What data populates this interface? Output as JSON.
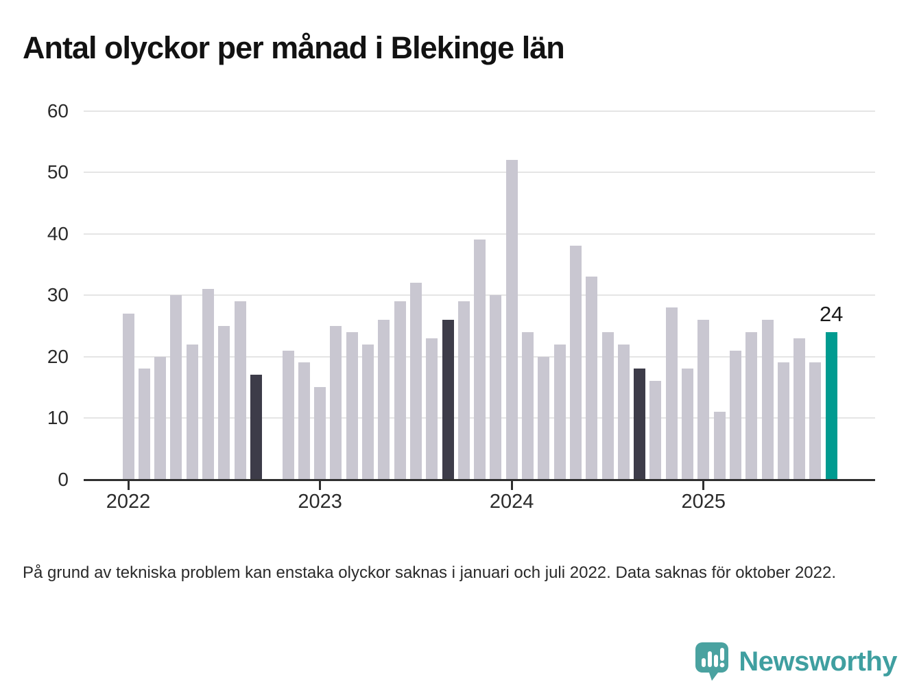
{
  "title": "Antal olyckor per månad i Blekinge län",
  "footnote": "På grund av tekniska problem kan enstaka olyckor saknas i januari och juli 2022. Data saknas för oktober 2022.",
  "logo": {
    "text": "Newsworthy"
  },
  "chart_data": {
    "type": "bar",
    "title": "Antal olyckor per månad i Blekinge län",
    "xlabel": "",
    "ylabel": "",
    "ylim": [
      0,
      60
    ],
    "y_ticks": [
      0,
      10,
      20,
      30,
      40,
      50,
      60
    ],
    "grid": true,
    "legend": false,
    "bars": [
      {
        "value": 27,
        "style": "default"
      },
      {
        "value": 18,
        "style": "default"
      },
      {
        "value": 20,
        "style": "default"
      },
      {
        "value": 30,
        "style": "default"
      },
      {
        "value": 22,
        "style": "default"
      },
      {
        "value": 31,
        "style": "default"
      },
      {
        "value": 25,
        "style": "default"
      },
      {
        "value": 29,
        "style": "default"
      },
      {
        "value": 17,
        "style": "dark"
      },
      {
        "value": null,
        "style": "none"
      },
      {
        "value": 21,
        "style": "default"
      },
      {
        "value": 19,
        "style": "default"
      },
      {
        "value": 15,
        "style": "default"
      },
      {
        "value": 25,
        "style": "default"
      },
      {
        "value": 24,
        "style": "default"
      },
      {
        "value": 22,
        "style": "default"
      },
      {
        "value": 26,
        "style": "default"
      },
      {
        "value": 29,
        "style": "default"
      },
      {
        "value": 32,
        "style": "default"
      },
      {
        "value": 23,
        "style": "default"
      },
      {
        "value": 26,
        "style": "dark"
      },
      {
        "value": 29,
        "style": "default"
      },
      {
        "value": 39,
        "style": "default"
      },
      {
        "value": 30,
        "style": "default"
      },
      {
        "value": 52,
        "style": "default"
      },
      {
        "value": 24,
        "style": "default"
      },
      {
        "value": 20,
        "style": "default"
      },
      {
        "value": 22,
        "style": "default"
      },
      {
        "value": 38,
        "style": "default"
      },
      {
        "value": 33,
        "style": "default"
      },
      {
        "value": 24,
        "style": "default"
      },
      {
        "value": 22,
        "style": "default"
      },
      {
        "value": 18,
        "style": "dark"
      },
      {
        "value": 16,
        "style": "default"
      },
      {
        "value": 28,
        "style": "default"
      },
      {
        "value": 18,
        "style": "default"
      },
      {
        "value": 26,
        "style": "default"
      },
      {
        "value": 11,
        "style": "default"
      },
      {
        "value": 21,
        "style": "default"
      },
      {
        "value": 24,
        "style": "default"
      },
      {
        "value": 26,
        "style": "default"
      },
      {
        "value": 19,
        "style": "default"
      },
      {
        "value": 23,
        "style": "default"
      },
      {
        "value": 19,
        "style": "default"
      },
      {
        "value": 24,
        "style": "highlight"
      }
    ],
    "year_ticks": [
      {
        "label": "2022",
        "bar_index": 0
      },
      {
        "label": "2023",
        "bar_index": 12
      },
      {
        "label": "2024",
        "bar_index": 24
      },
      {
        "label": "2025",
        "bar_index": 36
      }
    ],
    "highlight_label": {
      "text": "24",
      "bar_index": 44
    },
    "colors": {
      "bar_default": "#c9c7d1",
      "bar_dark": "#3d3c49",
      "bar_highlight": "#009b90",
      "axis": "#2f2f2f",
      "gridline": "#e5e5e5",
      "logo_teal": "#4aa2a0"
    }
  }
}
